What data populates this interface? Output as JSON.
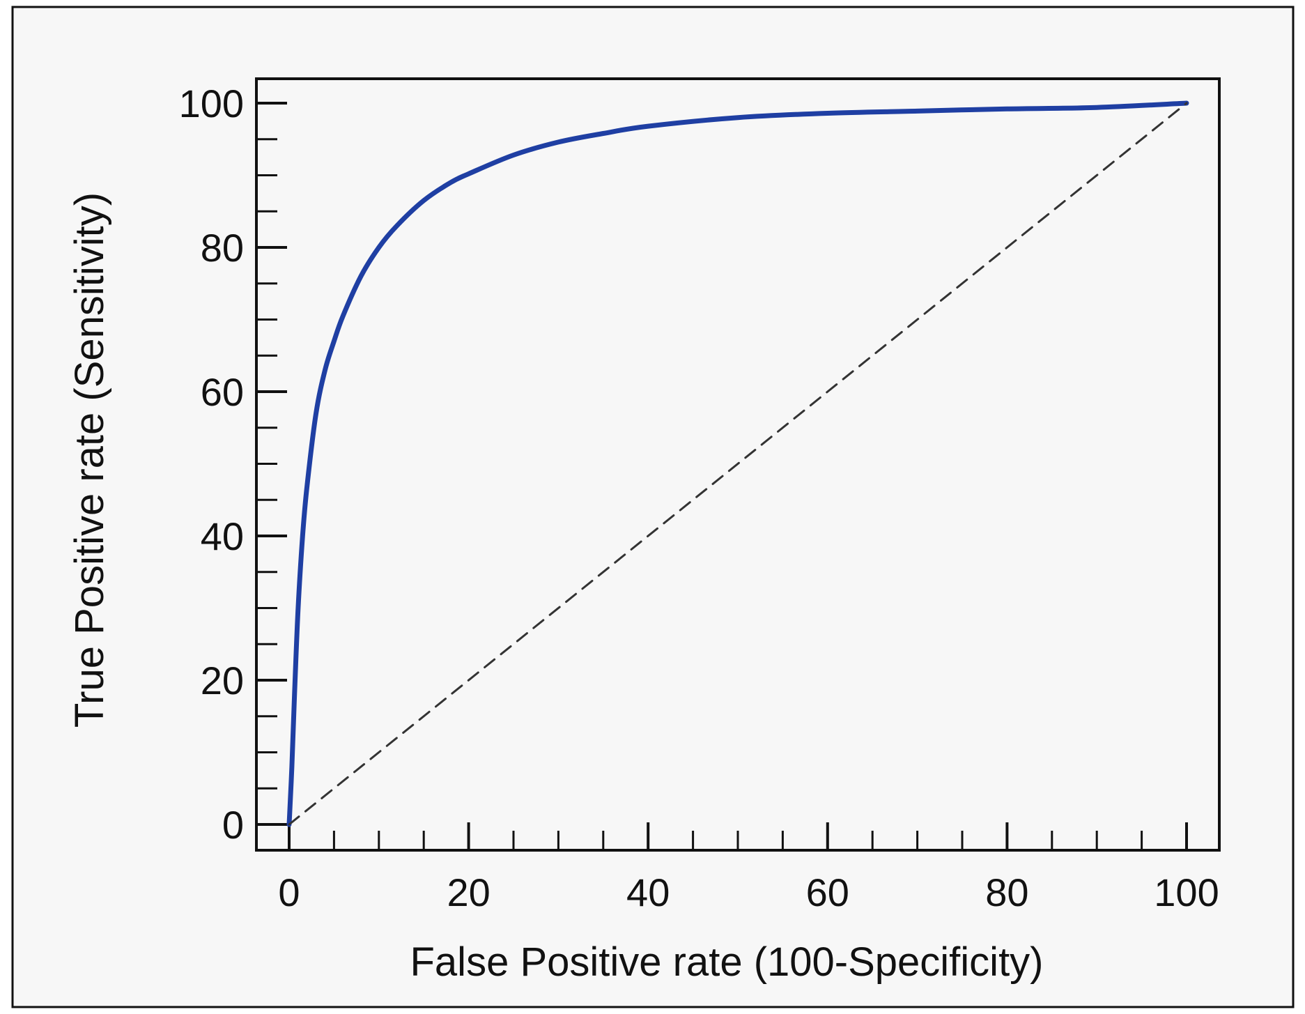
{
  "chart_data": {
    "type": "line",
    "title": "",
    "xlabel": "False Positive rate (100-Specificity)",
    "ylabel": "True Positive rate (Sensitivity)",
    "xlim": [
      0,
      100
    ],
    "ylim": [
      0,
      100
    ],
    "x_ticks": [
      "0",
      "20",
      "40",
      "60",
      "80",
      "100"
    ],
    "y_ticks": [
      "0",
      "20",
      "40",
      "60",
      "80",
      "100"
    ],
    "grid": false,
    "legend": "none",
    "colors": {
      "curve": "#1f3fa3",
      "reference": "#333333",
      "plot_background": "#f7f7f7",
      "axis": "#111111"
    },
    "series": [
      {
        "style": "solid",
        "x": [
          0,
          0.3,
          0.6,
          1,
          1.5,
          2,
          3,
          4,
          5,
          6,
          8,
          10,
          12,
          15,
          18,
          20,
          25,
          30,
          35,
          40,
          50,
          60,
          70,
          80,
          90,
          100
        ],
        "y": [
          0,
          8,
          18,
          30,
          40,
          47,
          57,
          63,
          67,
          70.5,
          76,
          80,
          83,
          86.5,
          89,
          90.2,
          92.8,
          94.6,
          95.8,
          96.8,
          98,
          98.6,
          98.9,
          99.2,
          99.4,
          100
        ]
      },
      {
        "style": "dashed",
        "x": [
          0,
          100
        ],
        "y": [
          0,
          100
        ]
      }
    ]
  }
}
